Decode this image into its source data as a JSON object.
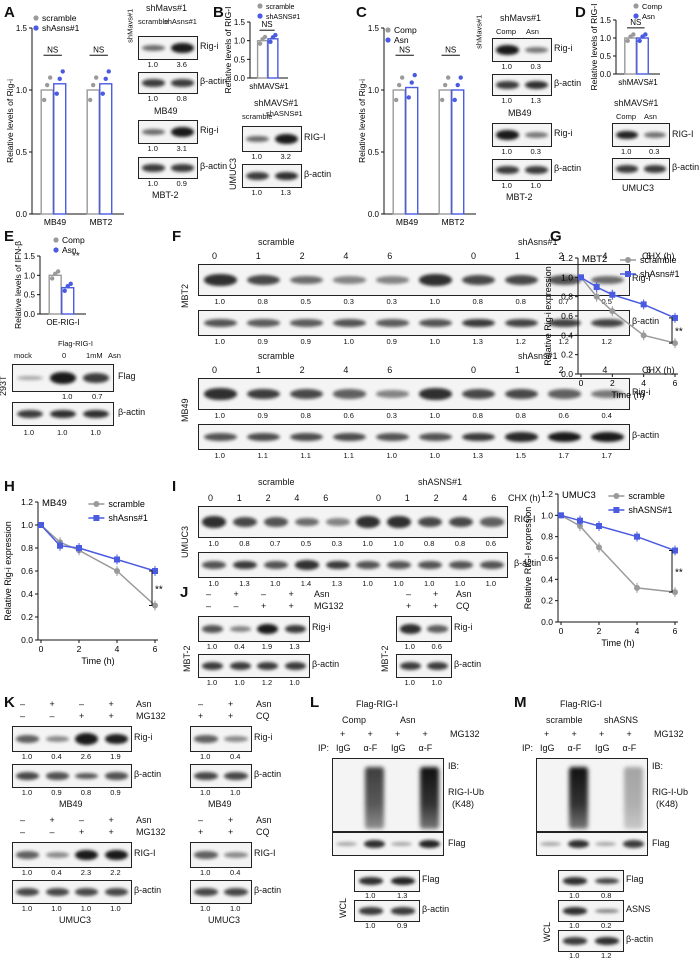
{
  "panels": {
    "A": {
      "label": "A",
      "chart": {
        "ylabel": "Relative levels of Rig-i",
        "categories": [
          "MB49",
          "MBT2"
        ],
        "legend": [
          "scramble",
          "shAsns#1"
        ],
        "groups": [
          [
            1.0,
            1.05
          ],
          [
            1.0,
            1.05
          ]
        ],
        "ticks": [
          "0.0",
          "0.5",
          "1.0",
          "1.5"
        ],
        "ns": [
          "NS",
          "NS"
        ],
        "bracket": "shMavs#1"
      },
      "blots": {
        "header": "shMavs#1",
        "cols": [
          "scramble",
          "shAsns#1"
        ],
        "rows": [
          {
            "label": "Rig-i",
            "values": [
              "1.0",
              "3.6"
            ]
          },
          {
            "label": "β-actin",
            "values": [
              "1.0",
              "0.8"
            ]
          },
          {
            "label": "Rig-i",
            "values": [
              "1.0",
              "3.1"
            ]
          },
          {
            "label": "β-actin",
            "values": [
              "1.0",
              "0.9"
            ]
          }
        ],
        "cells": [
          "MB49",
          "MBT-2"
        ]
      }
    },
    "B": {
      "label": "B",
      "chart": {
        "ylabel": "Relative levels of RIG-I",
        "legend": [
          "scramble",
          "shASNS#1"
        ],
        "ticks": [
          "0.0",
          "0.5",
          "1.0",
          "1.5"
        ],
        "ns": "NS",
        "xlabel": "shMAVS#1"
      },
      "blots": {
        "header": "shMAVS#1",
        "cols": [
          "scramble",
          "shASNS#1"
        ],
        "cell": "UMUC3",
        "rows": [
          {
            "label": "RIG-I",
            "values": [
              "1.0",
              "3.2"
            ]
          },
          {
            "label": "β-actin",
            "values": [
              "1.0",
              "1.3"
            ]
          }
        ]
      }
    },
    "C": {
      "label": "C",
      "chart": {
        "ylabel": "Relative levels of Rig-i",
        "categories": [
          "MB49",
          "MBT2"
        ],
        "legend": [
          "Comp",
          "Asn"
        ],
        "ticks": [
          "0.0",
          "0.5",
          "1.0",
          "1.5"
        ],
        "ns": [
          "NS",
          "NS"
        ],
        "bracket": "shMavs#1"
      },
      "blots": {
        "header": "shMavs#1",
        "cols": [
          "Comp",
          "Asn"
        ],
        "rows": [
          {
            "label": "Rig-i",
            "values": [
              "1.0",
              "0.3"
            ]
          },
          {
            "label": "β-actin",
            "values": [
              "1.0",
              "1.3"
            ]
          },
          {
            "label": "Rig-i",
            "values": [
              "1.0",
              "0.3"
            ]
          },
          {
            "label": "β-actin",
            "values": [
              "1.0",
              "1.0"
            ]
          }
        ],
        "cells": [
          "MB49",
          "MBT-2"
        ]
      }
    },
    "D": {
      "label": "D",
      "chart": {
        "ylabel": "Relative levels of RIG-I",
        "legend": [
          "Comp",
          "Asn"
        ],
        "ticks": [
          "0.0",
          "0.5",
          "1.0",
          "1.5"
        ],
        "ns": "NS",
        "xlabel": "shMAVS#1"
      },
      "blots": {
        "header": "shMAVS#1",
        "cols": [
          "Comp",
          "Asn"
        ],
        "cell": "UMUC3",
        "rows": [
          {
            "label": "RIG-I",
            "values": [
              "1.0",
              "0.3"
            ]
          },
          {
            "label": "β-actin",
            "values": []
          }
        ]
      }
    },
    "E": {
      "label": "E",
      "chart": {
        "ylabel": "Relative levels of IFN-β",
        "legend": [
          "Comp",
          "Asn"
        ],
        "ticks": [
          "0.0",
          "0.5",
          "1.0",
          "1.5"
        ],
        "sig": "**",
        "xlabel": "OE-RIG-I"
      },
      "blots": {
        "header": "Flag-RIG-I",
        "cols": [
          "mock",
          "0",
          "1mM",
          "Asn"
        ],
        "cell": "293T",
        "rows": [
          {
            "label": "Flag",
            "values": [
              "1.0",
              "0.7"
            ]
          },
          {
            "label": "β-actin",
            "values": [
              "1.0",
              "1.0",
              "1.0"
            ]
          }
        ]
      }
    },
    "F": {
      "label": "F",
      "groups": [
        "scramble",
        "shAsns#1"
      ],
      "times": [
        "0",
        "1",
        "2",
        "4",
        "6"
      ],
      "chx": "CHX (h)",
      "cells": [
        {
          "name": "MBT2",
          "rig": [
            "1.0",
            "0.8",
            "0.5",
            "0.3",
            "0.3",
            "1.0",
            "0.8",
            "0.8",
            "0.7",
            "0.5"
          ],
          "actin": [
            "1.0",
            "0.9",
            "0.9",
            "1.0",
            "0.9",
            "1.0",
            "1.3",
            "1.2",
            "1.2",
            "1.2"
          ]
        },
        {
          "name": "MB49",
          "rig": [
            "1.0",
            "0.9",
            "0.8",
            "0.6",
            "0.3",
            "1.0",
            "0.8",
            "0.8",
            "0.6",
            "0.4"
          ],
          "actin": [
            "1.0",
            "1.1",
            "1.1",
            "1.1",
            "1.0",
            "1.0",
            "1.3",
            "1.5",
            "1.7",
            "1.7"
          ]
        }
      ],
      "rowlabels": [
        "Rig-i",
        "β-actin"
      ]
    },
    "G": {
      "label": "G",
      "chart": {
        "title": "MBT2",
        "ylabel": "Relative Rig-i expression",
        "xlabel": "Time (h)",
        "legend": [
          "scramble",
          "shAsns#1"
        ],
        "sig": "**",
        "x": [
          0,
          1,
          2,
          4,
          6
        ],
        "series": [
          {
            "name": "scramble",
            "values": [
              1.0,
              0.8,
              0.65,
              0.4,
              0.32
            ]
          },
          {
            "name": "shAsns#1",
            "values": [
              1.0,
              0.9,
              0.82,
              0.72,
              0.58
            ]
          }
        ],
        "yticks": [
          "0.0",
          "0.2",
          "0.4",
          "0.6",
          "0.8",
          "1.0",
          "1.2"
        ],
        "xticks": [
          "0",
          "2",
          "4",
          "6"
        ]
      }
    },
    "H": {
      "label": "H",
      "chart": {
        "title": "MB49",
        "ylabel": "Relative Rig-i expression",
        "xlabel": "Time (h)",
        "legend": [
          "scramble",
          "shAsns#1"
        ],
        "sig": "**",
        "x": [
          0,
          1,
          2,
          4,
          6
        ],
        "series": [
          {
            "name": "scramble",
            "values": [
              1.0,
              0.85,
              0.78,
              0.6,
              0.3
            ]
          },
          {
            "name": "shAsns#1",
            "values": [
              1.0,
              0.82,
              0.8,
              0.7,
              0.6
            ]
          }
        ],
        "yticks": [
          "0.0",
          "0.2",
          "0.4",
          "0.6",
          "0.8",
          "1.0",
          "1.2"
        ],
        "xticks": [
          "0",
          "2",
          "4",
          "6"
        ]
      }
    },
    "I": {
      "label": "I",
      "groups": [
        "scramble",
        "shASNS#1"
      ],
      "times": [
        "0",
        "1",
        "2",
        "4",
        "6"
      ],
      "chx": "CHX (h)",
      "cell": "UMUC3",
      "rig": [
        "1.0",
        "0.8",
        "0.7",
        "0.5",
        "0.3",
        "1.0",
        "1.0",
        "0.8",
        "0.8",
        "0.6"
      ],
      "actin": [
        "1.0",
        "1.3",
        "1.0",
        "1.4",
        "1.3",
        "1.0",
        "1.0",
        "1.0",
        "1.0",
        "1.0"
      ],
      "rowlabels": [
        "RIG-I",
        "β-actin"
      ],
      "chart": {
        "title": "UMUC3",
        "ylabel": "Relative RIG-I expression",
        "xlabel": "Time (h)",
        "legend": [
          "scramble",
          "shASNS#1"
        ],
        "sig": "**",
        "x": [
          0,
          1,
          2,
          4,
          6
        ],
        "series": [
          {
            "name": "scramble",
            "values": [
              1.0,
              0.9,
              0.7,
              0.32,
              0.28
            ]
          },
          {
            "name": "shASNS#1",
            "values": [
              1.0,
              0.95,
              0.9,
              0.8,
              0.67
            ]
          }
        ],
        "yticks": [
          "0.0",
          "0.2",
          "0.4",
          "0.6",
          "0.8",
          "1.0",
          "1.2"
        ],
        "xticks": [
          "0",
          "2",
          "4",
          "6"
        ]
      }
    },
    "J": {
      "label": "J",
      "left": {
        "conds": [
          [
            "–",
            "+",
            "–",
            "+"
          ],
          [
            "–",
            "–",
            "+",
            "+"
          ]
        ],
        "condlabels": [
          "Asn",
          "MG132"
        ],
        "cell": "MBT-2",
        "rig": [
          "1.0",
          "0.4",
          "1.9",
          "1.3"
        ],
        "actin": [
          "1.0",
          "1.0",
          "1.2",
          "1.0"
        ]
      },
      "right": {
        "conds": [
          [
            "–",
            "+"
          ],
          [
            "+",
            "+"
          ]
        ],
        "condlabels": [
          "Asn",
          "CQ"
        ],
        "cell": "MBT-2",
        "rig": [
          "1.0",
          "0.6"
        ],
        "actin": [
          "1.0",
          "1.0"
        ]
      },
      "rowlabels": [
        "Rig-i",
        "β-actin"
      ]
    },
    "K": {
      "label": "K",
      "blots": [
        {
          "conds": [
            [
              "–",
              "+",
              "–",
              "+"
            ],
            [
              "–",
              "–",
              "+",
              "+"
            ]
          ],
          "condlabels": [
            "Asn",
            "MG132"
          ],
          "cell": "MB49",
          "rowlabels": [
            "Rig-i",
            "β-actin"
          ],
          "rig": [
            "1.0",
            "0.4",
            "2.6",
            "1.9"
          ],
          "actin": [
            "1.0",
            "0.9",
            "0.8",
            "0.9"
          ]
        },
        {
          "conds": [
            [
              "–",
              "+"
            ],
            [
              "+",
              "+"
            ]
          ],
          "condlabels": [
            "Asn",
            "CQ"
          ],
          "cell": "MB49",
          "rowlabels": [
            "Rig-i",
            "β-actin"
          ],
          "rig": [
            "1.0",
            "0.4"
          ],
          "actin": [
            "1.0",
            "1.0"
          ]
        },
        {
          "conds": [
            [
              "–",
              "+",
              "–",
              "+"
            ],
            [
              "–",
              "–",
              "+",
              "+"
            ]
          ],
          "condlabels": [
            "Asn",
            "MG132"
          ],
          "cell": "UMUC3",
          "rowlabels": [
            "RIG-I",
            "β-actin"
          ],
          "rig": [
            "1.0",
            "0.4",
            "2.3",
            "2.2"
          ],
          "actin": [
            "1.0",
            "1.0",
            "1.0",
            "1.0"
          ]
        },
        {
          "conds": [
            [
              "–",
              "+"
            ],
            [
              "+",
              "+"
            ]
          ],
          "condlabels": [
            "Asn",
            "CQ"
          ],
          "cell": "UMUC3",
          "rowlabels": [
            "RIG-I",
            "β-actin"
          ],
          "rig": [
            "1.0",
            "0.4"
          ],
          "actin": [
            "1.0",
            "1.0"
          ]
        }
      ]
    },
    "L": {
      "label": "L",
      "header": "Flag-RIG-I",
      "groups": [
        "Comp",
        "Asn"
      ],
      "mg": "MG132",
      "ip": "IP:",
      "cols": [
        "IgG",
        "α-F",
        "IgG",
        "α-F"
      ],
      "ib": "IB:",
      "ub": "RIG-I-Ub",
      "k48": "(K48)",
      "flag": "Flag",
      "wcl": "WCL",
      "wclrows": [
        {
          "label": "Flag",
          "values": [
            "1.0",
            "1.3"
          ]
        },
        {
          "label": "β-actin",
          "values": [
            "1.0",
            "0.9"
          ]
        }
      ]
    },
    "M": {
      "label": "M",
      "header": "Flag-RIG-I",
      "groups": [
        "scramble",
        "shASNS"
      ],
      "mg": "MG132",
      "ip": "IP:",
      "cols": [
        "IgG",
        "α-F",
        "IgG",
        "α-F"
      ],
      "ib": "IB:",
      "ub": "RIG-I-Ub",
      "k48": "(K48)",
      "flag": "Flag",
      "wcl": "WCL",
      "wclrows": [
        {
          "label": "Flag",
          "values": [
            "1.0",
            "0.8"
          ]
        },
        {
          "label": "ASNS",
          "values": [
            "1.0",
            "0.2"
          ]
        },
        {
          "label": "β-actin",
          "values": [
            "1.0",
            "1.2"
          ]
        }
      ]
    }
  },
  "colors": {
    "gray": "#9a9a9a",
    "blue": "#4a5be0",
    "band": "#1a1a1a"
  }
}
